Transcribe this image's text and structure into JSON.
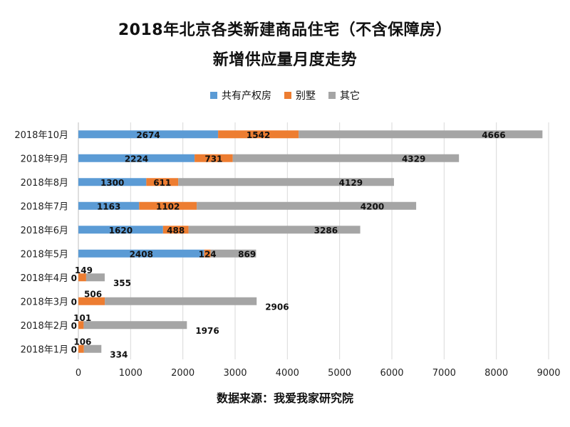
{
  "chart_data": {
    "type": "bar",
    "orientation": "horizontal",
    "stacked": true,
    "title": "2018年北京各类新建商品住宅（不含保障房）",
    "subtitle": "新增供应量月度走势",
    "categories": [
      "2018年10月",
      "2018年9月",
      "2018年8月",
      "2018年7月",
      "2018年6月",
      "2018年5月",
      "2018年4月",
      "2018年3月",
      "2018年2月",
      "2018年1月"
    ],
    "series": [
      {
        "name": "共有产权房",
        "color": "#5b9bd5",
        "values": [
          2674,
          2224,
          1300,
          1163,
          1620,
          2408,
          0,
          0,
          0,
          0
        ]
      },
      {
        "name": "别墅",
        "color": "#ed7d31",
        "values": [
          1542,
          731,
          611,
          1102,
          488,
          124,
          149,
          506,
          101,
          106
        ]
      },
      {
        "name": "其它",
        "color": "#a5a5a5",
        "values": [
          4666,
          4329,
          4129,
          4200,
          3286,
          869,
          355,
          2906,
          1976,
          334
        ]
      }
    ],
    "xlim": [
      0,
      9000
    ],
    "x_ticks": [
      "0",
      "1000",
      "2000",
      "3000",
      "4000",
      "5000",
      "6000",
      "7000",
      "8000",
      "9000"
    ],
    "grid": true,
    "legend_position": "top-center",
    "source": "数据来源：我爱我家研究院"
  }
}
